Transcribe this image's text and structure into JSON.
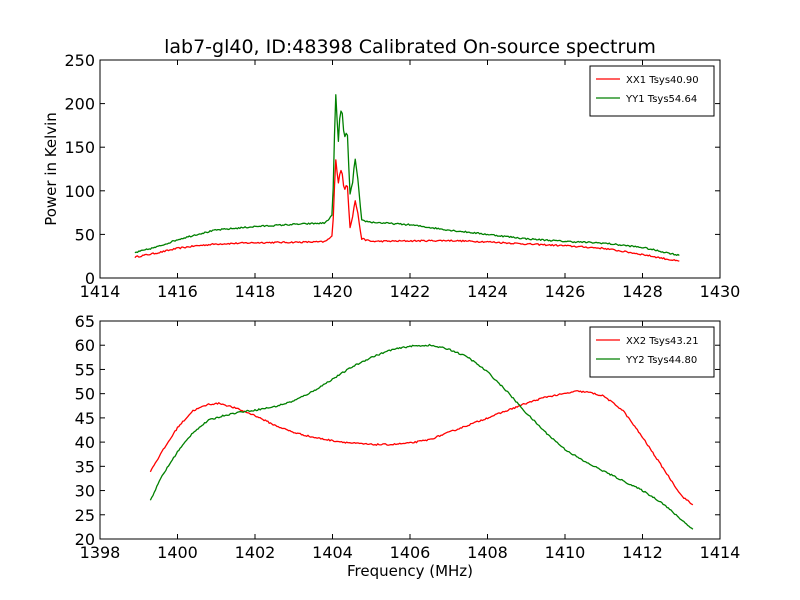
{
  "title": "lab7-gl40, ID:48398 Calibrated On-source spectrum",
  "chart_data": [
    {
      "type": "line",
      "xlim": [
        1414,
        1430
      ],
      "ylim": [
        0,
        250
      ],
      "xticks": [
        1414,
        1416,
        1418,
        1420,
        1422,
        1424,
        1426,
        1428,
        1430
      ],
      "yticks": [
        0,
        50,
        100,
        150,
        200,
        250
      ],
      "xlabel": "",
      "ylabel": "Power in Kelvin",
      "legend": "top-right",
      "grid": false,
      "series": [
        {
          "name": "XX1 Tsys40.90",
          "color": "#ff0000",
          "x": [
            1414.9,
            1415.5,
            1416.0,
            1416.5,
            1417.0,
            1418.0,
            1419.0,
            1419.8,
            1420.0,
            1420.08,
            1420.15,
            1420.2,
            1420.25,
            1420.3,
            1420.38,
            1420.45,
            1420.52,
            1420.58,
            1420.65,
            1420.75,
            1421.0,
            1422.0,
            1423.0,
            1424.0,
            1425.0,
            1426.0,
            1427.0,
            1428.0,
            1428.95
          ],
          "y": [
            24,
            29,
            34,
            37,
            39,
            40.5,
            41,
            41.5,
            48,
            138,
            108,
            124,
            120,
            100,
            110,
            58,
            70,
            90,
            75,
            45,
            42,
            42.5,
            43,
            41.5,
            39,
            37,
            34,
            27,
            19
          ]
        },
        {
          "name": "YY1 Tsys54.64",
          "color": "#008000",
          "x": [
            1414.9,
            1415.5,
            1416.0,
            1416.5,
            1417.0,
            1418.0,
            1419.0,
            1419.8,
            1420.0,
            1420.08,
            1420.15,
            1420.2,
            1420.25,
            1420.3,
            1420.38,
            1420.45,
            1420.52,
            1420.58,
            1420.65,
            1420.75,
            1421.0,
            1422.0,
            1423.0,
            1424.0,
            1425.0,
            1426.0,
            1427.0,
            1428.0,
            1428.95
          ],
          "y": [
            29,
            36,
            44,
            50,
            55,
            59,
            61.5,
            63,
            72,
            214,
            155,
            193,
            190,
            160,
            170,
            95,
            110,
            138,
            115,
            66,
            64,
            61,
            55,
            50,
            45,
            42,
            40,
            35,
            26
          ]
        }
      ]
    },
    {
      "type": "line",
      "xlim": [
        1398,
        1414
      ],
      "ylim": [
        20,
        65
      ],
      "xticks": [
        1398,
        1400,
        1402,
        1404,
        1406,
        1408,
        1410,
        1412,
        1414
      ],
      "yticks": [
        20,
        25,
        30,
        35,
        40,
        45,
        50,
        55,
        60,
        65
      ],
      "xlabel": "Frequency (MHz)",
      "ylabel": "",
      "legend": "top-right",
      "grid": false,
      "series": [
        {
          "name": "XX2 Tsys43.21",
          "color": "#ff0000",
          "x": [
            1399.3,
            1399.6,
            1400.0,
            1400.4,
            1400.8,
            1401.1,
            1401.5,
            1402.0,
            1402.5,
            1403.0,
            1403.5,
            1404.0,
            1404.5,
            1405.0,
            1405.5,
            1406.0,
            1406.5,
            1407.0,
            1407.5,
            1408.0,
            1408.5,
            1409.0,
            1409.5,
            1410.0,
            1410.3,
            1410.6,
            1411.0,
            1411.5,
            1412.0,
            1412.5,
            1413.0,
            1413.3
          ],
          "y": [
            34,
            38,
            43,
            46.5,
            47.8,
            48,
            47,
            45.5,
            43.5,
            42,
            41,
            40.3,
            39.8,
            39.5,
            39.5,
            39.8,
            40.5,
            42,
            43.5,
            45,
            46.5,
            48,
            49.3,
            50,
            50.5,
            50.3,
            49.5,
            46.5,
            41,
            35,
            29,
            27
          ]
        },
        {
          "name": "YY2 Tsys44.80",
          "color": "#008000",
          "x": [
            1399.3,
            1399.6,
            1400.0,
            1400.4,
            1400.8,
            1401.2,
            1401.6,
            1402.0,
            1402.5,
            1403.0,
            1403.5,
            1404.0,
            1404.5,
            1405.0,
            1405.5,
            1406.0,
            1406.5,
            1407.0,
            1407.5,
            1408.0,
            1408.5,
            1409.0,
            1409.5,
            1410.0,
            1410.5,
            1411.0,
            1411.5,
            1412.0,
            1412.5,
            1413.0,
            1413.3
          ],
          "y": [
            28,
            33,
            38,
            42,
            44.5,
            45.5,
            46.2,
            46.6,
            47.3,
            48.5,
            50.5,
            53,
            55.5,
            57.5,
            59,
            59.8,
            60,
            59.2,
            57.5,
            54.5,
            50.5,
            46,
            42,
            38.5,
            36,
            34,
            32,
            30,
            27.5,
            24,
            22
          ]
        }
      ]
    }
  ]
}
